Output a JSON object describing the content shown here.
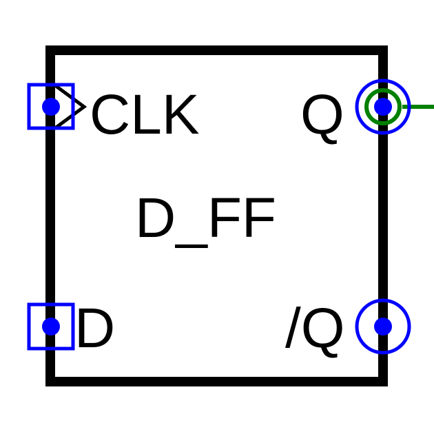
{
  "component": {
    "name": "D_FF",
    "pins": {
      "clk": "CLK",
      "d": "D",
      "q": "Q",
      "qbar": "/Q"
    }
  },
  "colors": {
    "body_outline": "#000000",
    "pin_marker": "#0000ff",
    "pin_dot": "#0000ff",
    "net_wire": "#008000"
  },
  "pin_marker_shapes": {
    "inputs": "square",
    "outputs": "circle"
  },
  "connected_pins": [
    "Q"
  ],
  "icons": {
    "clock_input": "clock-triangle-icon"
  }
}
